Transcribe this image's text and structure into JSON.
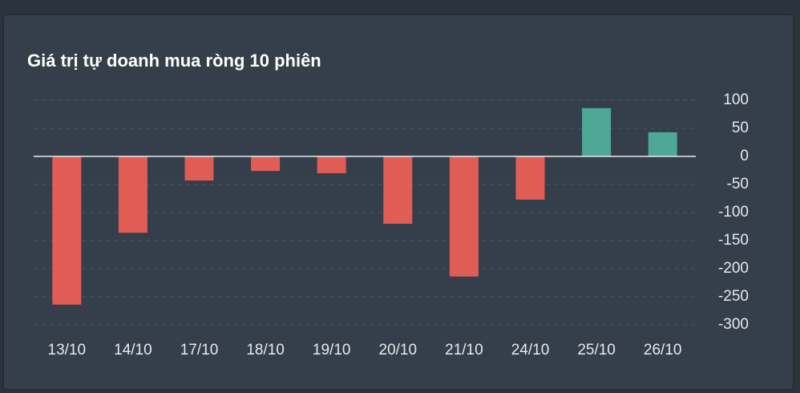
{
  "chart_data": {
    "type": "bar",
    "title": "Giá trị tự doanh mua ròng 10 phiên",
    "categories": [
      "13/10",
      "14/10",
      "17/10",
      "18/10",
      "19/10",
      "20/10",
      "21/10",
      "24/10",
      "25/10",
      "26/10"
    ],
    "values": [
      -264,
      -136,
      -43,
      -26,
      -30,
      -120,
      -214,
      -77,
      86,
      43
    ],
    "colors": {
      "positive": "#4fa796",
      "negative": "#e05d56"
    },
    "ylim": [
      -300,
      100
    ],
    "yticks": [
      -300,
      -250,
      -200,
      -150,
      -100,
      -50,
      0,
      50,
      100
    ],
    "grid": true
  }
}
